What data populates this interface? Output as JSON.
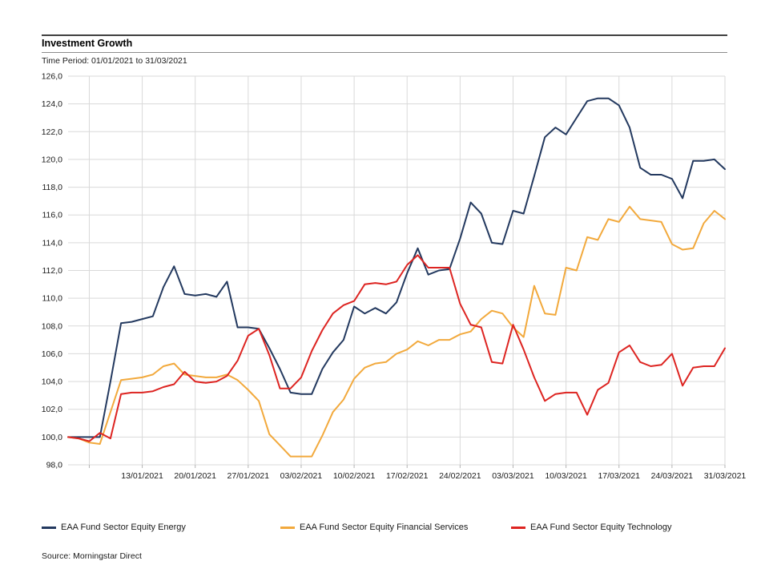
{
  "header": {
    "title": "Investment Growth",
    "subtitle": "Time Period: 01/01/2021 to 31/03/2021"
  },
  "source": "Source: Morningstar Direct",
  "colors": {
    "grid": "#d9d9d9",
    "tick": "#b3b3b3",
    "text": "#1a1a1a"
  },
  "chart_data": {
    "type": "line",
    "title": "Investment Growth",
    "xlabel": "",
    "ylabel": "",
    "ylim": [
      98,
      126
    ],
    "ytick_step": 2,
    "grid": true,
    "legend_position": "bottom",
    "yticks": [
      "98,0",
      "100,0",
      "102,0",
      "104,0",
      "106,0",
      "108,0",
      "110,0",
      "112,0",
      "114,0",
      "116,0",
      "118,0",
      "120,0",
      "122,0",
      "124,0",
      "126,0"
    ],
    "gridline_indices": [
      2,
      7,
      12,
      17,
      22,
      27,
      32,
      37,
      42,
      47,
      52,
      57,
      62
    ],
    "xticks": [
      {
        "i": 7,
        "label": "13/01/2021"
      },
      {
        "i": 12,
        "label": "20/01/2021"
      },
      {
        "i": 17,
        "label": "27/01/2021"
      },
      {
        "i": 22,
        "label": "03/02/2021"
      },
      {
        "i": 27,
        "label": "10/02/2021"
      },
      {
        "i": 32,
        "label": "17/02/2021"
      },
      {
        "i": 37,
        "label": "24/02/2021"
      },
      {
        "i": 42,
        "label": "03/03/2021"
      },
      {
        "i": 47,
        "label": "10/03/2021"
      },
      {
        "i": 52,
        "label": "17/03/2021"
      },
      {
        "i": 57,
        "label": "24/03/2021"
      },
      {
        "i": 62,
        "label": "31/03/2021"
      }
    ],
    "x": [
      "04/01/2021",
      "05/01/2021",
      "06/01/2021",
      "07/01/2021",
      "08/01/2021",
      "11/01/2021",
      "12/01/2021",
      "13/01/2021",
      "14/01/2021",
      "15/01/2021",
      "18/01/2021",
      "19/01/2021",
      "20/01/2021",
      "21/01/2021",
      "22/01/2021",
      "25/01/2021",
      "26/01/2021",
      "27/01/2021",
      "28/01/2021",
      "29/01/2021",
      "01/02/2021",
      "02/02/2021",
      "03/02/2021",
      "04/02/2021",
      "05/02/2021",
      "08/02/2021",
      "09/02/2021",
      "10/02/2021",
      "11/02/2021",
      "12/02/2021",
      "15/02/2021",
      "16/02/2021",
      "17/02/2021",
      "18/02/2021",
      "19/02/2021",
      "22/02/2021",
      "23/02/2021",
      "24/02/2021",
      "25/02/2021",
      "26/02/2021",
      "01/03/2021",
      "02/03/2021",
      "03/03/2021",
      "04/03/2021",
      "05/03/2021",
      "08/03/2021",
      "09/03/2021",
      "10/03/2021",
      "11/03/2021",
      "12/03/2021",
      "15/03/2021",
      "16/03/2021",
      "17/03/2021",
      "18/03/2021",
      "19/03/2021",
      "22/03/2021",
      "23/03/2021",
      "24/03/2021",
      "25/03/2021",
      "26/03/2021",
      "29/03/2021",
      "30/03/2021",
      "31/03/2021"
    ],
    "series": [
      {
        "name": "EAA Fund Sector Equity Energy",
        "color": "#23395f",
        "values": [
          100.0,
          100.0,
          100.0,
          100.0,
          104.0,
          108.2,
          108.3,
          108.5,
          108.7,
          110.8,
          112.3,
          110.3,
          110.2,
          110.3,
          110.1,
          111.2,
          107.9,
          107.9,
          107.8,
          106.4,
          104.9,
          103.2,
          103.1,
          103.1,
          104.9,
          106.1,
          107.0,
          109.4,
          108.9,
          109.3,
          108.9,
          109.7,
          111.8,
          113.6,
          111.7,
          112.0,
          112.1,
          114.3,
          116.9,
          116.1,
          114.0,
          113.9,
          116.3,
          116.1,
          118.8,
          121.6,
          122.3,
          121.8,
          123.0,
          124.2,
          124.4,
          124.4,
          123.9,
          122.3,
          119.4,
          118.9,
          118.9,
          118.6,
          117.2,
          119.9,
          119.9,
          120.0,
          119.3
        ]
      },
      {
        "name": "EAA Fund Sector Equity Financial Services",
        "color": "#f2a93c",
        "values": [
          100.0,
          99.9,
          99.6,
          99.5,
          101.8,
          104.1,
          104.2,
          104.3,
          104.5,
          105.1,
          105.3,
          104.5,
          104.4,
          104.3,
          104.3,
          104.5,
          104.1,
          103.4,
          102.6,
          100.2,
          99.4,
          98.6,
          98.6,
          98.6,
          100.1,
          101.8,
          102.7,
          104.2,
          105.0,
          105.3,
          105.4,
          106.0,
          106.3,
          106.9,
          106.6,
          107.0,
          107.0,
          107.4,
          107.6,
          108.5,
          109.1,
          108.9,
          107.9,
          107.2,
          110.9,
          108.9,
          108.8,
          112.2,
          112.0,
          114.4,
          114.2,
          115.7,
          115.5,
          116.6,
          115.7,
          115.6,
          115.5,
          113.9,
          113.5,
          113.6,
          115.4,
          116.3,
          115.7
        ]
      },
      {
        "name": "EAA Fund Sector Equity Technology",
        "color": "#dd2421",
        "values": [
          100.0,
          99.9,
          99.7,
          100.3,
          99.9,
          103.1,
          103.2,
          103.2,
          103.3,
          103.6,
          103.8,
          104.7,
          104.0,
          103.9,
          104.0,
          104.4,
          105.5,
          107.3,
          107.8,
          105.9,
          103.5,
          103.5,
          104.3,
          106.2,
          107.7,
          108.9,
          109.5,
          109.8,
          111.0,
          111.1,
          111.0,
          111.2,
          112.4,
          113.1,
          112.2,
          112.2,
          112.2,
          109.6,
          108.1,
          107.9,
          105.4,
          105.3,
          108.1,
          106.3,
          104.3,
          102.6,
          103.1,
          103.2,
          103.2,
          101.6,
          103.4,
          103.9,
          106.1,
          106.6,
          105.4,
          105.1,
          105.2,
          106.0,
          103.7,
          105.0,
          105.1,
          105.1,
          106.4
        ]
      }
    ]
  }
}
